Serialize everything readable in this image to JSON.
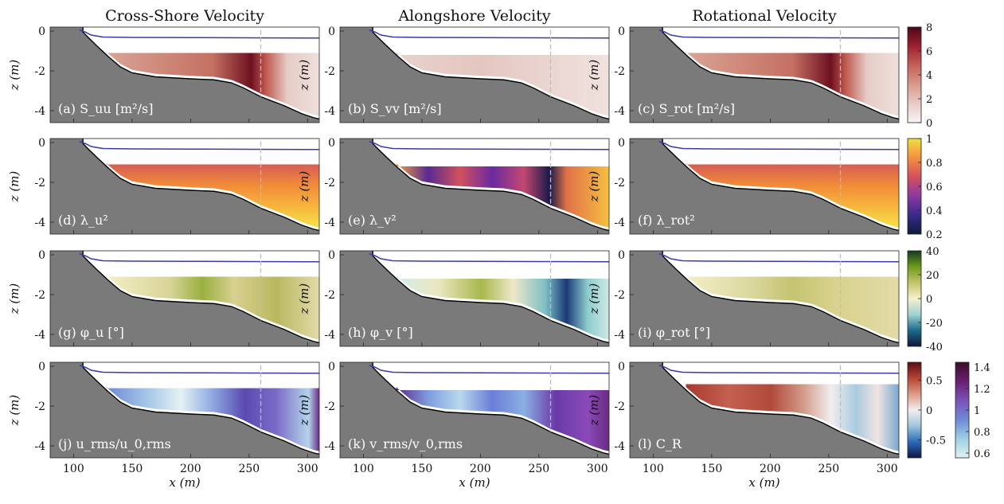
{
  "chart_data": {
    "type": "heatmap",
    "columns": [
      "Cross-Shore Velocity",
      "Alongshore Velocity",
      "Rotational Velocity"
    ],
    "xlabel": "x (m)",
    "ylabel": "z (m)",
    "xticks": [
      100,
      150,
      200,
      250,
      300
    ],
    "yticks": [
      0,
      -2,
      -4
    ],
    "xlim": [
      80,
      310
    ],
    "ylim": [
      -4.6,
      0.2
    ],
    "dashed_line_x": 260,
    "rows": [
      {
        "colorbar": {
          "colormap": "white-red",
          "ticks": [
            "8",
            "6",
            "4",
            "2",
            "0"
          ],
          "range": [
            0,
            8
          ]
        },
        "panels": [
          {
            "label": "(a) S_uu [m²/s]",
            "peak_x": 225,
            "peak_value": 8,
            "min_value": 0.5
          },
          {
            "label": "(b) S_vv [m²/s]",
            "peak_x": 200,
            "peak_value": 1.5,
            "min_value": 0.5
          },
          {
            "label": "(c) S_rot [m²/s]",
            "peak_x": 225,
            "peak_value": 8,
            "min_value": 0.5
          }
        ]
      },
      {
        "colorbar": {
          "colormap": "plasma",
          "ticks": [
            "1",
            "0.8",
            "0.6",
            "0.4",
            "0.2"
          ],
          "range": [
            0.2,
            1
          ]
        },
        "panels": [
          {
            "label": "(d) λ_u²",
            "min_value": 0.6
          },
          {
            "label": "(e) λ_v²",
            "min_value": 0.2
          },
          {
            "label": "(f) λ_rot²",
            "min_value": 0.6
          }
        ]
      },
      {
        "colorbar": {
          "colormap": "blue-yellow-green",
          "ticks": [
            "40",
            "20",
            "0",
            "-20",
            "-40"
          ],
          "range": [
            -40,
            40
          ]
        },
        "panels": [
          {
            "label": "(g) φ_u [°]",
            "min_value": 0,
            "max_value": 25
          },
          {
            "label": "(h) φ_v [°]",
            "min_value": -40,
            "max_value": 25
          },
          {
            "label": "(i) φ_rot [°]",
            "min_value": 0,
            "max_value": 25
          }
        ]
      },
      {
        "colorbar": {
          "colormap": "rms-blue-purple",
          "ticks": [
            "1.4",
            "1.2",
            "1",
            "0.8",
            "0.6"
          ],
          "range": [
            0.6,
            1.4
          ]
        },
        "colorbar2": {
          "colormap": "balance",
          "ticks": [
            "0.5",
            "0",
            "-0.5"
          ],
          "range": [
            -0.8,
            0.8
          ]
        },
        "panels": [
          {
            "label": "(j) u_rms/u_0,rms"
          },
          {
            "label": "(k) v_rms/v_0,rms"
          },
          {
            "label": "(l) C_R"
          }
        ]
      }
    ]
  }
}
